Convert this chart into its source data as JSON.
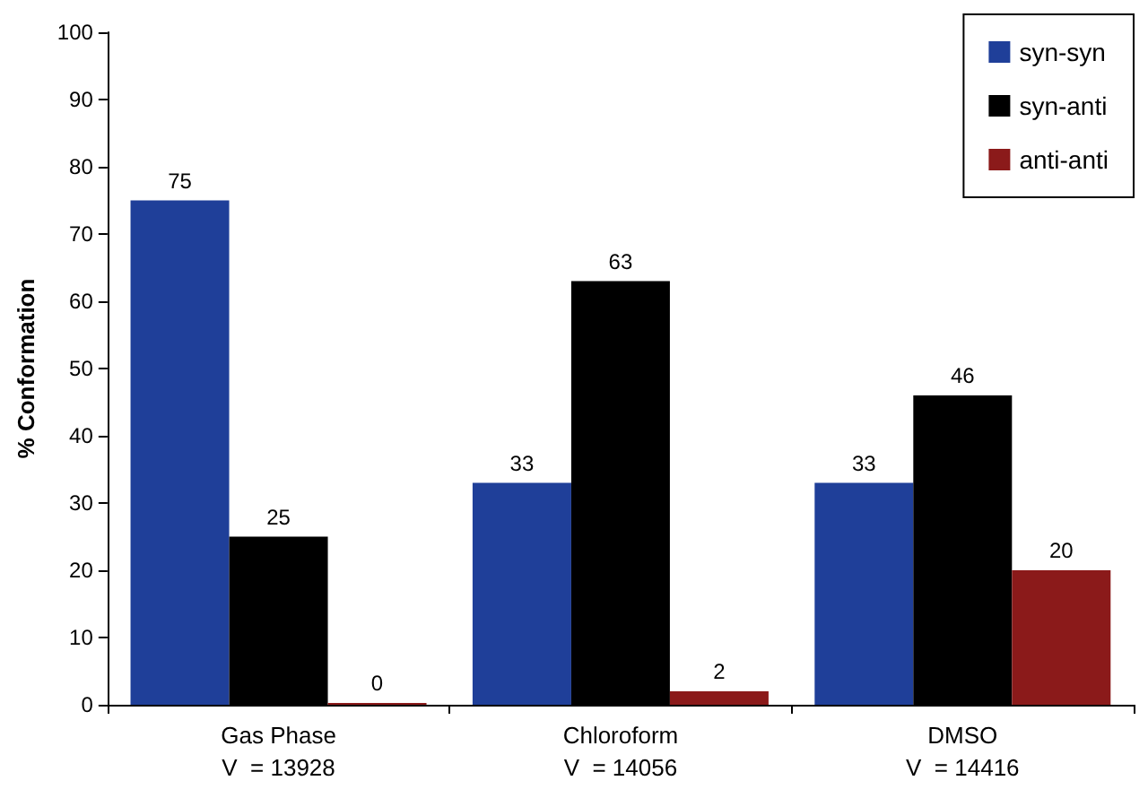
{
  "chart_data": {
    "type": "bar",
    "ylabel": "% Conformation",
    "categories": [
      "Gas Phase\nV  = 13928",
      "Chloroform\nV  = 14056",
      "DMSO\nV  = 14416"
    ],
    "series": [
      {
        "name": "syn-syn",
        "color": "#1f3f99",
        "values": [
          75,
          33,
          33
        ]
      },
      {
        "name": "syn-anti",
        "color": "#000000",
        "values": [
          25,
          63,
          46
        ]
      },
      {
        "name": "anti-anti",
        "color": "#8b1a1a",
        "values": [
          0,
          2,
          20
        ]
      }
    ],
    "ylim": [
      0,
      100
    ],
    "yticks": [
      0,
      10,
      20,
      30,
      40,
      50,
      60,
      70,
      80,
      90,
      100
    ],
    "grid": false,
    "legend": "top right",
    "data_labels": true
  }
}
